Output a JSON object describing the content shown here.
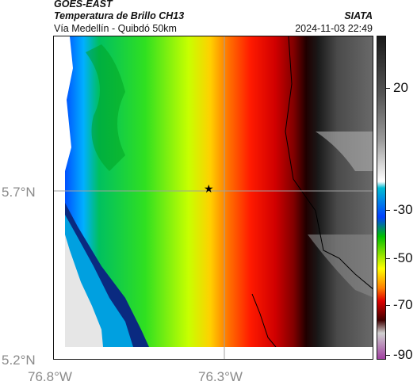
{
  "header": {
    "satellite": "GOES-EAST",
    "product": "Temperatura de Brillo CH13",
    "region": "Vía Medellín - Quibdó 50km",
    "source": "SIATA",
    "datetime": "2024-11-03 22:49"
  },
  "map": {
    "lat_ticks": [
      "5.7°N",
      "5.2°N"
    ],
    "lon_ticks": [
      "76.8°W",
      "76.3°W"
    ],
    "marker_icon": "star-icon"
  },
  "colorbar": {
    "ticks": [
      "20",
      "-30",
      "-50",
      "-70",
      "-90"
    ],
    "colors": [
      "#1a1a1a",
      "#555555",
      "#9a9a9a",
      "#ffffff",
      "#00bcd4",
      "#0040ff",
      "#00c000",
      "#ffff00",
      "#ff8000",
      "#e00000",
      "#400000",
      "#d0d0d0",
      "#a040a0"
    ]
  }
}
